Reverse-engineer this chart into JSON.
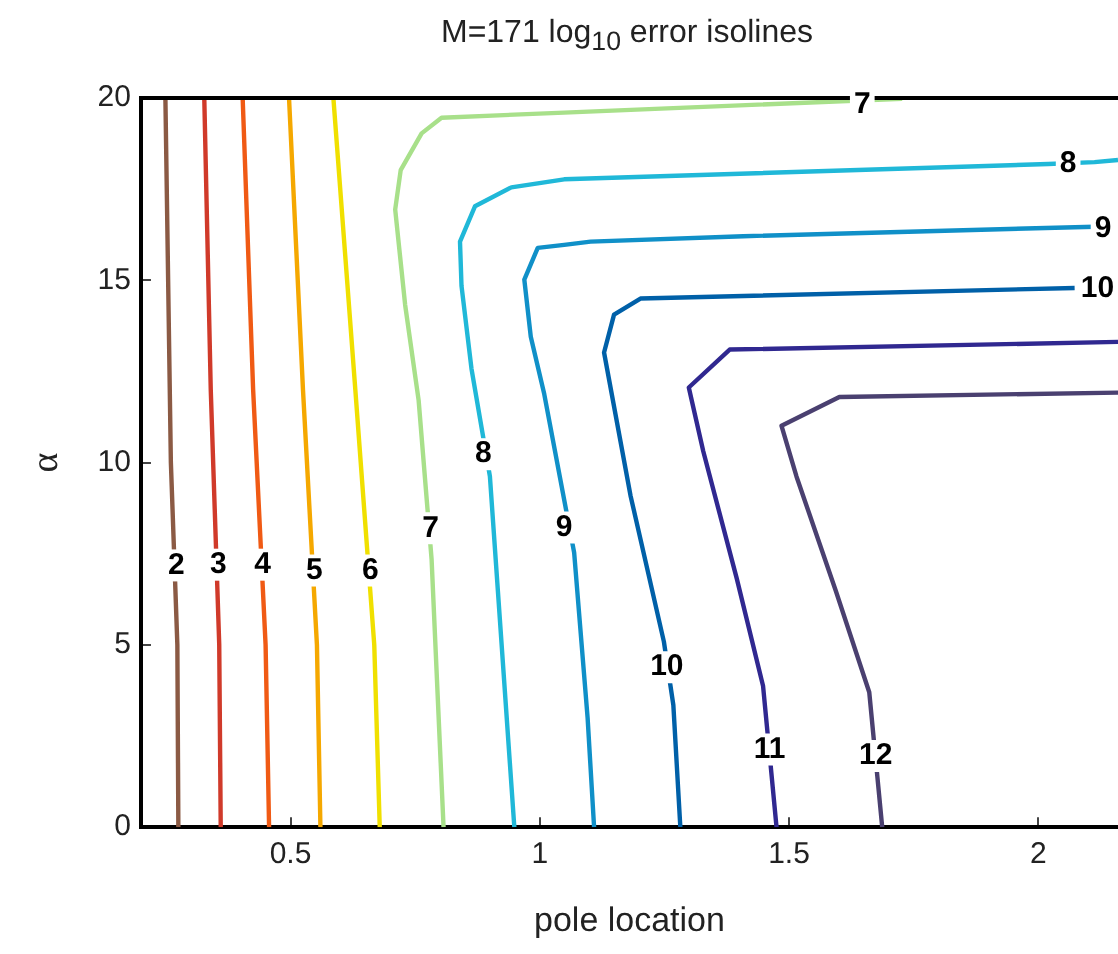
{
  "chart_data": {
    "type": "line",
    "title": "M=171 log$_{10}$ error isolines",
    "xlabel": "pole location",
    "ylabel": "α",
    "xlim": [
      0.2,
      2.16
    ],
    "ylim": [
      0,
      20
    ],
    "xticks": [
      0.5,
      1,
      1.5,
      2
    ],
    "yticks": [
      0,
      5,
      10,
      15,
      20
    ],
    "grid": false,
    "legend": false,
    "marker": "none",
    "line_style": "solid",
    "series": [
      {
        "color": "#8b5a44",
        "x": [
          0.249,
          0.26,
          0.273,
          0.275
        ],
        "values": [
          20,
          10,
          5,
          0
        ]
      },
      {
        "color": "#d03a2a",
        "x": [
          0.327,
          0.34,
          0.357,
          0.36
        ],
        "values": [
          20,
          12,
          5,
          0
        ]
      },
      {
        "color": "#f05a14",
        "x": [
          0.404,
          0.425,
          0.45,
          0.457
        ],
        "values": [
          20,
          12,
          5,
          0
        ]
      },
      {
        "color": "#f5a800",
        "x": [
          0.497,
          0.525,
          0.553,
          0.56
        ],
        "values": [
          20,
          12,
          5,
          0
        ]
      },
      {
        "color": "#f0e000",
        "x": [
          0.586,
          0.63,
          0.668,
          0.679
        ],
        "values": [
          20,
          12,
          5,
          0
        ]
      },
      {
        "color": "#a8e08a",
        "x": [
          1.727,
          1.049,
          0.803,
          0.763,
          0.721,
          0.71,
          0.73,
          0.757,
          0.783,
          0.807
        ],
        "values": [
          19.98,
          19.6,
          19.46,
          19.03,
          18.02,
          16.94,
          14.32,
          11.71,
          7.35,
          0
        ]
      },
      {
        "color": "#20b8d8",
        "x": [
          2.16,
          2.113,
          2.02,
          1.049,
          0.943,
          0.87,
          0.84,
          0.843,
          0.863,
          0.9,
          0.916,
          0.949
        ],
        "values": [
          18.3,
          18.24,
          18.19,
          17.77,
          17.55,
          17.03,
          16.06,
          14.85,
          12.58,
          9.62,
          6.48,
          0
        ]
      },
      {
        "color": "#1090c8",
        "x": [
          2.113,
          1.408,
          1.102,
          1.049,
          0.996,
          0.969,
          0.982,
          1.009,
          1.069,
          1.096,
          1.109
        ],
        "values": [
          16.47,
          16.21,
          16.06,
          15.97,
          15.89,
          15.02,
          13.45,
          11.88,
          7.53,
          3,
          0
        ]
      },
      {
        "color": "#0060a8",
        "x": [
          2.073,
          1.202,
          1.149,
          1.129,
          1.182,
          1.249,
          1.268,
          1.282
        ],
        "values": [
          14.79,
          14.5,
          14.06,
          13.02,
          9.1,
          5.09,
          3.35,
          0
        ]
      },
      {
        "color": "#302890",
        "x": [
          2.16,
          1.381,
          1.299,
          1.328,
          1.395,
          1.448,
          1.475
        ],
        "values": [
          13.31,
          13.1,
          12.06,
          10.31,
          6.83,
          3.87,
          0
        ]
      },
      {
        "color": "#4a4070",
        "x": [
          2.16,
          1.601,
          1.485,
          1.515,
          1.594,
          1.661,
          1.687
        ],
        "values": [
          11.92,
          11.8,
          11.01,
          9.62,
          6.48,
          3.7,
          0
        ]
      }
    ],
    "annotations": [
      {
        "text": "2",
        "x": 0.271,
        "y": 7.18
      },
      {
        "text": "3",
        "x": 0.355,
        "y": 7.2
      },
      {
        "text": "4",
        "x": 0.444,
        "y": 7.2
      },
      {
        "text": "5",
        "x": 0.548,
        "y": 7.04
      },
      {
        "text": "6",
        "x": 0.66,
        "y": 7.04
      },
      {
        "text": "7",
        "x": 0.781,
        "y": 8.2
      },
      {
        "text": "7",
        "x": 1.647,
        "y": 19.81
      },
      {
        "text": "8",
        "x": 0.887,
        "y": 10.23
      },
      {
        "text": "8",
        "x": 2.06,
        "y": 18.19
      },
      {
        "text": "9",
        "x": 1.049,
        "y": 8.22
      },
      {
        "text": "9",
        "x": 2.13,
        "y": 16.41
      },
      {
        "text": "10",
        "x": 1.255,
        "y": 4.39
      },
      {
        "text": "10",
        "x": 2.119,
        "y": 14.76
      },
      {
        "text": "11",
        "x": 1.461,
        "y": 2.13
      },
      {
        "text": "12",
        "x": 1.674,
        "y": 1.95
      }
    ]
  }
}
